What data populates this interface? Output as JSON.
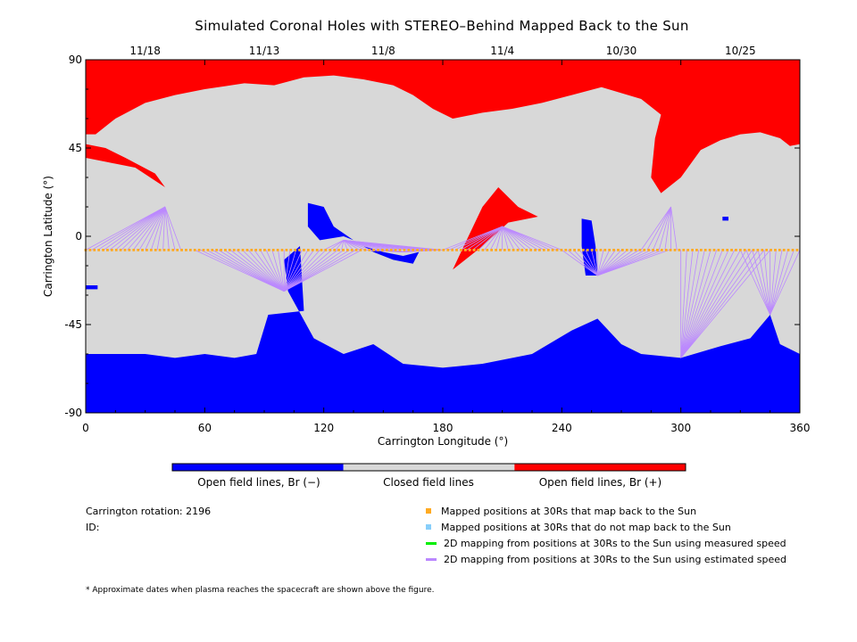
{
  "title": "Simulated Coronal Holes with STEREO–Behind Mapped Back to the Sun",
  "colors": {
    "open_negative": "#0000ff",
    "closed": "#d8d8d8",
    "open_positive": "#ff0000",
    "mapped_points": "#ffaa22",
    "unmapped_points": "#87cefa",
    "measured_speed_line": "#00ee00",
    "estimated_speed_line": "#bb88ff"
  },
  "colorbar": {
    "labels": [
      "Open field lines, Br (−)",
      "Closed field lines",
      "Open field lines, Br (+)"
    ]
  },
  "info": {
    "carrington_rotation": "Carrington rotation: 2196",
    "id": "ID:"
  },
  "legend": [
    {
      "label": "Mapped positions at 30Rs that map back to the Sun",
      "color": "#ffaa22",
      "kind": "square"
    },
    {
      "label": "Mapped positions at 30Rs that do not map back to the Sun",
      "color": "#87cefa",
      "kind": "square"
    },
    {
      "label": "2D mapping from positions at 30Rs to the Sun using measured speed",
      "color": "#00ee00",
      "kind": "line"
    },
    {
      "label": "2D mapping from positions at 30Rs to the Sun using estimated speed",
      "color": "#bb88ff",
      "kind": "line"
    }
  ],
  "footnote": "* Approximate dates when plasma reaches the spacecraft are shown above the figure.",
  "chart_data": {
    "type": "heatmap",
    "title": "Simulated Coronal Holes with STEREO–Behind Mapped Back to the Sun",
    "xlabel": "Carrington Longitude (°)",
    "ylabel": "Carrington Latitude (°)",
    "xlim": [
      0,
      360
    ],
    "ylim": [
      -90,
      90
    ],
    "x_ticks": [
      0,
      60,
      120,
      180,
      240,
      300,
      360
    ],
    "y_ticks": [
      -90,
      -45,
      0,
      45,
      90
    ],
    "top_axis_dates": [
      {
        "label": "11/18",
        "lon": 30
      },
      {
        "label": "11/13",
        "lon": 90
      },
      {
        "label": "11/8",
        "lon": 150
      },
      {
        "label": "11/4",
        "lon": 210
      },
      {
        "label": "10/30",
        "lon": 270
      },
      {
        "label": "10/25",
        "lon": 330
      }
    ],
    "categories": [
      "Open field lines, Br (−)",
      "Closed field lines",
      "Open field lines, Br (+)"
    ],
    "spacecraft_latitude": -7,
    "coronal_holes": [
      {
        "polarity": "positive",
        "polygon": [
          [
            0,
            90
          ],
          [
            360,
            90
          ],
          [
            360,
            47
          ],
          [
            355,
            46
          ],
          [
            350,
            50
          ],
          [
            340,
            53
          ],
          [
            330,
            52
          ],
          [
            320,
            49
          ],
          [
            310,
            44
          ],
          [
            300,
            30
          ],
          [
            290,
            22
          ],
          [
            285,
            30
          ],
          [
            287,
            50
          ],
          [
            290,
            62
          ],
          [
            280,
            70
          ],
          [
            260,
            76
          ],
          [
            245,
            72
          ],
          [
            230,
            68
          ],
          [
            215,
            65
          ],
          [
            200,
            63
          ],
          [
            185,
            60
          ],
          [
            175,
            65
          ],
          [
            165,
            72
          ],
          [
            155,
            77
          ],
          [
            140,
            80
          ],
          [
            125,
            82
          ],
          [
            110,
            81
          ],
          [
            95,
            77
          ],
          [
            80,
            78
          ],
          [
            60,
            75
          ],
          [
            45,
            72
          ],
          [
            30,
            68
          ],
          [
            15,
            60
          ],
          [
            5,
            52
          ],
          [
            0,
            52
          ]
        ]
      },
      {
        "polarity": "positive",
        "polygon": [
          [
            0,
            40
          ],
          [
            10,
            38
          ],
          [
            25,
            35
          ],
          [
            40,
            25
          ],
          [
            35,
            32
          ],
          [
            20,
            40
          ],
          [
            10,
            45
          ],
          [
            0,
            47
          ]
        ]
      },
      {
        "polarity": "positive",
        "polygon": [
          [
            185,
            -17
          ],
          [
            200,
            -5
          ],
          [
            213,
            7
          ],
          [
            228,
            10
          ],
          [
            218,
            15
          ],
          [
            208,
            25
          ],
          [
            200,
            15
          ],
          [
            192,
            -2
          ]
        ]
      },
      {
        "polarity": "negative",
        "polygon": [
          [
            0,
            -90
          ],
          [
            360,
            -90
          ],
          [
            360,
            -60
          ],
          [
            350,
            -55
          ],
          [
            345,
            -40
          ],
          [
            335,
            -52
          ],
          [
            320,
            -56
          ],
          [
            300,
            -62
          ],
          [
            280,
            -60
          ],
          [
            270,
            -55
          ],
          [
            258,
            -42
          ],
          [
            245,
            -48
          ],
          [
            225,
            -60
          ],
          [
            200,
            -65
          ],
          [
            180,
            -67
          ],
          [
            160,
            -65
          ],
          [
            145,
            -55
          ],
          [
            130,
            -60
          ],
          [
            115,
            -52
          ],
          [
            102,
            -28
          ],
          [
            100,
            -12
          ],
          [
            108,
            -5
          ],
          [
            110,
            -38
          ],
          [
            92,
            -40
          ],
          [
            86,
            -60
          ],
          [
            75,
            -62
          ],
          [
            60,
            -60
          ],
          [
            45,
            -62
          ],
          [
            30,
            -60
          ],
          [
            15,
            -60
          ],
          [
            0,
            -60
          ]
        ]
      },
      {
        "polarity": "negative",
        "polygon": [
          [
            112,
            17
          ],
          [
            120,
            15
          ],
          [
            125,
            5
          ],
          [
            135,
            -2
          ],
          [
            130,
            0
          ],
          [
            118,
            -2
          ],
          [
            112,
            5
          ]
        ]
      },
      {
        "polarity": "negative",
        "polygon": [
          [
            250,
            9
          ],
          [
            255,
            8
          ],
          [
            257,
            -5
          ],
          [
            258,
            -20
          ],
          [
            252,
            -20
          ],
          [
            250,
            -5
          ]
        ]
      },
      {
        "polarity": "negative",
        "polygon": [
          [
            140,
            -5
          ],
          [
            150,
            -8
          ],
          [
            160,
            -10
          ],
          [
            168,
            -8
          ],
          [
            165,
            -14
          ],
          [
            155,
            -12
          ],
          [
            145,
            -8
          ]
        ]
      },
      {
        "polarity": "negative",
        "polygon": [
          [
            321,
            10
          ],
          [
            324,
            10
          ],
          [
            324,
            8
          ],
          [
            321,
            8
          ]
        ]
      },
      {
        "polarity": "negative",
        "polygon": [
          [
            0,
            -25
          ],
          [
            6,
            -25
          ],
          [
            6,
            -27
          ],
          [
            0,
            -27
          ]
        ]
      }
    ],
    "field_line_fans": [
      {
        "target": [
          40,
          15
        ],
        "lon_start": 0,
        "lon_end": 50,
        "speed": "estimated"
      },
      {
        "target": [
          100,
          -28
        ],
        "lon_start": 55,
        "lon_end": 140,
        "speed": "estimated"
      },
      {
        "target": [
          130,
          -2
        ],
        "lon_start": 120,
        "lon_end": 180,
        "speed": "estimated"
      },
      {
        "target": [
          160,
          -8
        ],
        "lon_start": 140,
        "lon_end": 180,
        "speed": "estimated"
      },
      {
        "target": [
          210,
          5
        ],
        "lon_start": 180,
        "lon_end": 240,
        "speed": "estimated"
      },
      {
        "target": [
          258,
          -20
        ],
        "lon_start": 240,
        "lon_end": 295,
        "speed": "estimated"
      },
      {
        "target": [
          295,
          15
        ],
        "lon_start": 280,
        "lon_end": 300,
        "speed": "estimated"
      },
      {
        "target": [
          300,
          -62
        ],
        "lon_start": 300,
        "lon_end": 345,
        "speed": "estimated"
      },
      {
        "target": [
          345,
          -40
        ],
        "lon_start": 330,
        "lon_end": 360,
        "speed": "estimated"
      }
    ]
  }
}
